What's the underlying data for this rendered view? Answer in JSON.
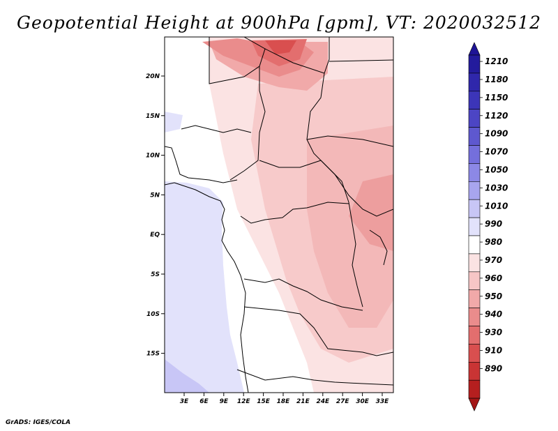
{
  "title": "Geopotential Height at 900hPa [gpm], VT: 2020032512",
  "credit": "GrADS: IGES/COLA",
  "map": {
    "lat_labels": [
      "20N",
      "15N",
      "10N",
      "5N",
      "EQ",
      "5S",
      "10S",
      "15S"
    ],
    "lon_labels": [
      "3E",
      "6E",
      "9E",
      "12E",
      "15E",
      "18E",
      "21E",
      "24E",
      "27E",
      "30E",
      "33E"
    ]
  },
  "colorbar": {
    "labels": [
      "1210",
      "1180",
      "1150",
      "1120",
      "1090",
      "1070",
      "1050",
      "1030",
      "1010",
      "990",
      "980",
      "970",
      "960",
      "950",
      "940",
      "930",
      "910",
      "890"
    ],
    "colors": {
      "top_arrow": "#1e1496",
      "levels": [
        "#231b9c",
        "#2f27ab",
        "#3c35b8",
        "#4c45c4",
        "#5e58cf",
        "#746fdc",
        "#8c88e6",
        "#a8a5ef",
        "#c8c6f6",
        "#e2e2fb",
        "#ffffff",
        "#fbe3e3",
        "#f6c6c6",
        "#f1a9a9",
        "#ea8c8c",
        "#e36e6e",
        "#d94f4f",
        "#c93434",
        "#b51f1f"
      ],
      "bottom_arrow": "#a31616"
    }
  }
}
